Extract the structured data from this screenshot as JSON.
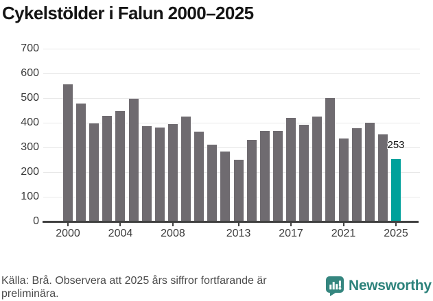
{
  "page": {
    "title": "Cykelstölder i Falun 2000–2025"
  },
  "footer": {
    "source_note": "Källa: Brå. Observera att 2025 års siffror fortfarande är preliminära.",
    "brand_name": "Newsworthy"
  },
  "colors": {
    "bar_gray": "#6f6b70",
    "bar_teal": "#00a19b",
    "brand_teal": "#35867f",
    "gridline": "#e8e8e8",
    "axis": "#414141",
    "tick_label": "#3b3b3b",
    "title_text": "#141414",
    "footer_text": "#4b4b4b"
  },
  "chart_data": {
    "type": "bar",
    "title": "Cykelstölder i Falun 2000–2025",
    "xlabel": "",
    "ylabel": "",
    "x": [
      2000,
      2001,
      2002,
      2003,
      2004,
      2005,
      2006,
      2007,
      2008,
      2009,
      2010,
      2011,
      2012,
      2013,
      2014,
      2015,
      2016,
      2017,
      2018,
      2019,
      2020,
      2021,
      2022,
      2023,
      2024,
      2025
    ],
    "values": [
      555,
      478,
      397,
      428,
      446,
      497,
      386,
      381,
      395,
      424,
      364,
      311,
      282,
      250,
      331,
      367,
      368,
      420,
      392,
      425,
      500,
      337,
      378,
      399,
      353,
      253
    ],
    "ylim": [
      0,
      700
    ],
    "ytick_step": 100,
    "yticks": [
      0,
      100,
      200,
      300,
      400,
      500,
      600,
      700
    ],
    "xticks": [
      2000,
      2004,
      2008,
      2013,
      2017,
      2021,
      2025
    ],
    "grid": true,
    "legend_position": "none",
    "bar_color": "#6f6b70",
    "highlight_year": 2025,
    "highlight_color": "#00a19b",
    "annotation": {
      "year": 2025,
      "label": "253"
    }
  }
}
